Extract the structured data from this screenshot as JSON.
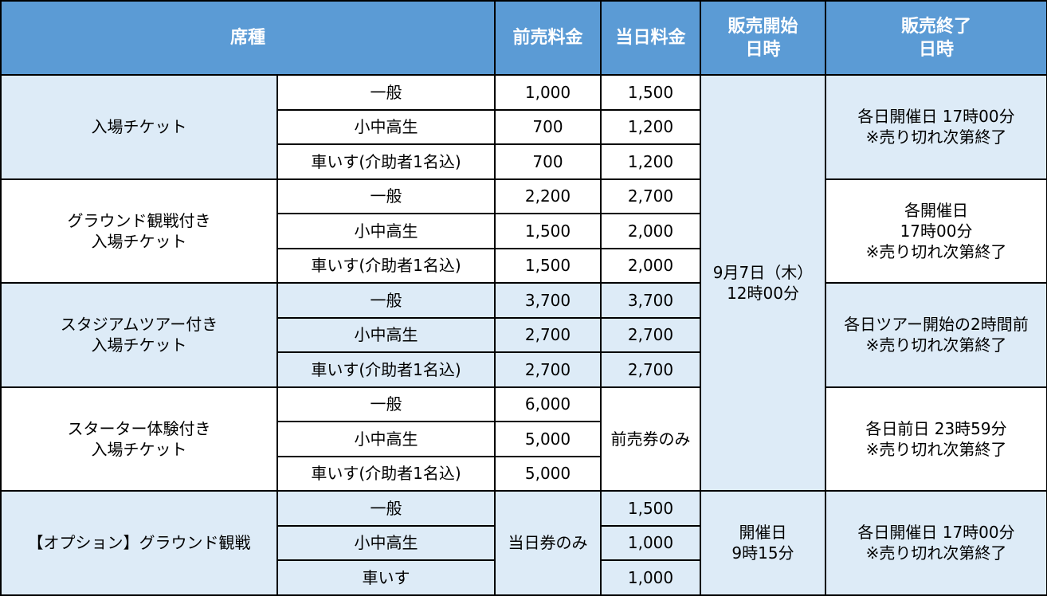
{
  "header": {
    "seat": "席種",
    "advance": "前売料金",
    "sameday": "当日料金",
    "sale_start": [
      "販売開始",
      "日時"
    ],
    "sale_end": [
      "販売終了",
      "日時"
    ]
  },
  "groups": [
    {
      "name": [
        "入場チケット"
      ],
      "rows": [
        {
          "cat": "一般",
          "adv": "1,000",
          "day": "1,500"
        },
        {
          "cat": "小中高生",
          "adv": "700",
          "day": "1,200"
        },
        {
          "cat": "車いす(介助者1名込)",
          "adv": "700",
          "day": "1,200"
        }
      ],
      "end": [
        "各日開催日 17時00分",
        "※売り切れ次第終了"
      ]
    },
    {
      "name": [
        "グラウンド観戦付き",
        "入場チケット"
      ],
      "rows": [
        {
          "cat": "一般",
          "adv": "2,200",
          "day": "2,700"
        },
        {
          "cat": "小中高生",
          "adv": "1,500",
          "day": "2,000"
        },
        {
          "cat": "車いす(介助者1名込)",
          "adv": "1,500",
          "day": "2,000"
        }
      ],
      "end": [
        "各開催日",
        "17時00分",
        "※売り切れ次第終了"
      ]
    },
    {
      "name": [
        "スタジアムツアー付き",
        "入場チケット"
      ],
      "rows": [
        {
          "cat": "一般",
          "adv": "3,700",
          "day": "3,700"
        },
        {
          "cat": "小中高生",
          "adv": "2,700",
          "day": "2,700"
        },
        {
          "cat": "車いす(介助者1名込)",
          "adv": "2,700",
          "day": "2,700"
        }
      ],
      "end": [
        "各日ツアー開始の2時間前",
        "※売り切れ次第終了"
      ]
    },
    {
      "name": [
        "スターター体験付き",
        "入場チケット"
      ],
      "rows": [
        {
          "cat": "一般",
          "adv": "6,000"
        },
        {
          "cat": "小中高生",
          "adv": "5,000"
        },
        {
          "cat": "車いす(介助者1名込)",
          "adv": "5,000"
        }
      ],
      "day_merged": "前売券のみ",
      "end": [
        "各日前日 23時59分",
        "※売り切れ次第終了"
      ]
    },
    {
      "name": [
        "【オプション】グラウンド観戦"
      ],
      "rows": [
        {
          "cat": "一般",
          "day": "1,500"
        },
        {
          "cat": "小中高生",
          "day": "1,000"
        },
        {
          "cat": "車いす",
          "day": "1,000"
        }
      ],
      "adv_merged": "当日券のみ",
      "start": [
        "開催日",
        "9時15分"
      ],
      "end": [
        "各日開催日 17時00分",
        "※売り切れ次第終了"
      ]
    }
  ],
  "sale_start_main": [
    "9月7日（木）",
    "12時00分"
  ],
  "colors": {
    "header_bg": "#5b9bd5",
    "shaded_bg": "#ddebf7",
    "white_bg": "#ffffff",
    "border": "#000000"
  }
}
